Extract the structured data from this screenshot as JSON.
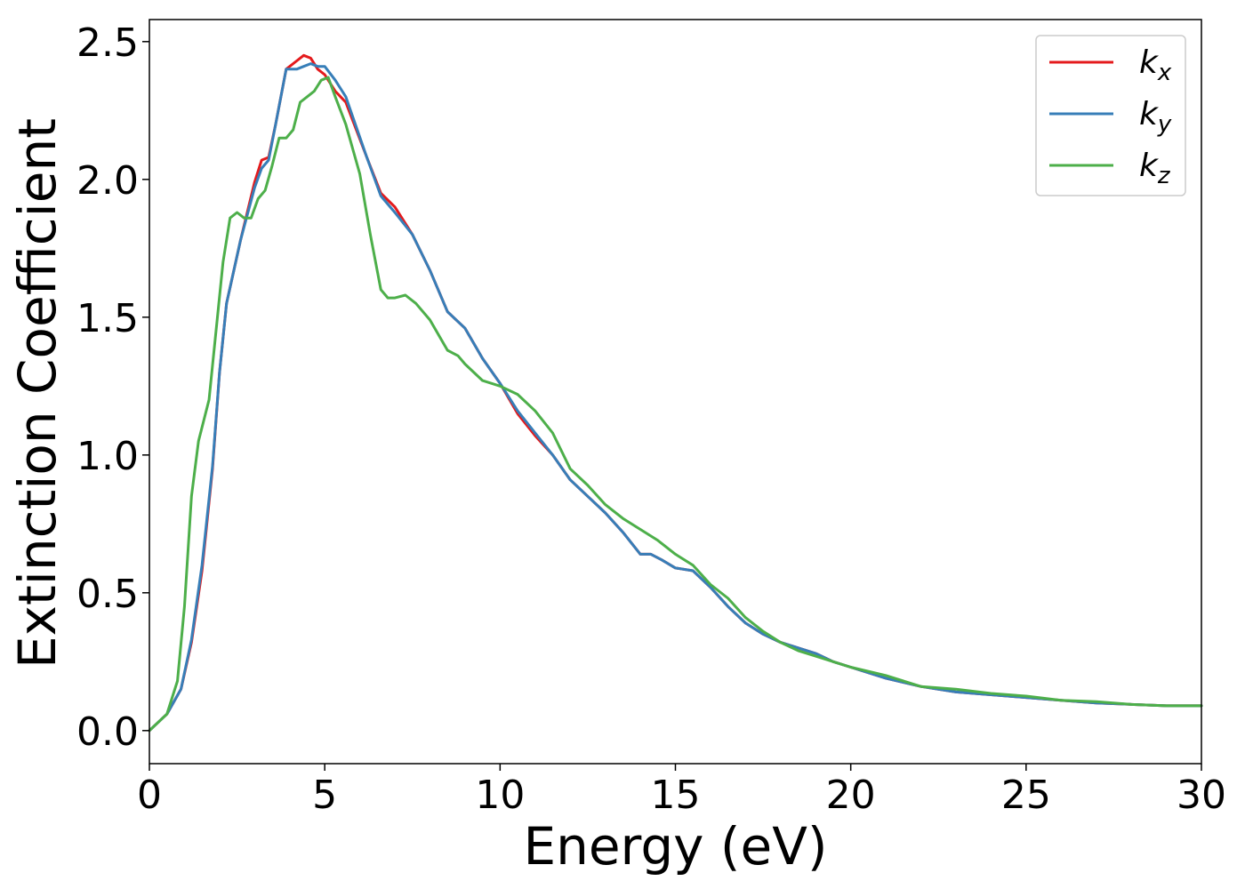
{
  "chart_data": {
    "type": "line",
    "xlabel": "Energy (eV)",
    "ylabel": "Extinction Coefficient",
    "xlim": [
      0,
      30
    ],
    "ylim": [
      -0.12,
      2.58
    ],
    "xticks": [
      0,
      5,
      10,
      15,
      20,
      25,
      30
    ],
    "xtick_labels": [
      "0",
      "5",
      "10",
      "15",
      "20",
      "25",
      "30"
    ],
    "yticks": [
      0.0,
      0.5,
      1.0,
      1.5,
      2.0,
      2.5
    ],
    "ytick_labels": [
      "0.0",
      "0.5",
      "1.0",
      "1.5",
      "2.0",
      "2.5"
    ],
    "grid": false,
    "legend_position": "top-right",
    "series": [
      {
        "name": "k_x",
        "label_main": "k",
        "label_sub": "x",
        "color": "#e41a1c",
        "x": [
          0,
          0.5,
          0.9,
          1.2,
          1.5,
          1.8,
          2.0,
          2.2,
          2.6,
          3.0,
          3.2,
          3.4,
          3.6,
          3.9,
          4.2,
          4.4,
          4.6,
          4.8,
          5.0,
          5.3,
          5.6,
          5.9,
          6.2,
          6.6,
          7.0,
          7.5,
          8.0,
          8.5,
          9.0,
          9.5,
          10.0,
          10.5,
          11.0,
          11.5,
          12.0,
          12.5,
          13.0,
          13.5,
          14.0,
          14.3,
          14.6,
          15.0,
          15.5,
          16.0,
          16.5,
          17.0,
          17.5,
          18.0,
          18.5,
          19.0,
          19.5,
          20.0,
          21.0,
          22.0,
          23.0,
          24.0,
          25.0,
          26.0,
          27.0,
          28.0,
          29.0,
          30.0
        ],
        "y": [
          0.0,
          0.06,
          0.15,
          0.32,
          0.58,
          0.95,
          1.3,
          1.55,
          1.78,
          1.99,
          2.07,
          2.08,
          2.2,
          2.4,
          2.43,
          2.45,
          2.44,
          2.4,
          2.38,
          2.32,
          2.28,
          2.18,
          2.08,
          1.95,
          1.9,
          1.8,
          1.67,
          1.52,
          1.46,
          1.35,
          1.26,
          1.15,
          1.07,
          1.0,
          0.91,
          0.85,
          0.79,
          0.72,
          0.64,
          0.64,
          0.62,
          0.59,
          0.58,
          0.52,
          0.45,
          0.39,
          0.35,
          0.32,
          0.3,
          0.28,
          0.25,
          0.23,
          0.19,
          0.16,
          0.14,
          0.13,
          0.12,
          0.11,
          0.1,
          0.095,
          0.09,
          0.09
        ]
      },
      {
        "name": "k_y",
        "label_main": "k",
        "label_sub": "y",
        "color": "#377eb8",
        "x": [
          0,
          0.5,
          0.9,
          1.2,
          1.5,
          1.8,
          2.0,
          2.2,
          2.6,
          3.0,
          3.2,
          3.4,
          3.6,
          3.9,
          4.2,
          4.4,
          4.6,
          4.8,
          5.0,
          5.3,
          5.6,
          5.9,
          6.2,
          6.6,
          7.0,
          7.5,
          8.0,
          8.5,
          9.0,
          9.5,
          10.0,
          10.5,
          11.0,
          11.5,
          12.0,
          12.5,
          13.0,
          13.5,
          14.0,
          14.3,
          14.6,
          15.0,
          15.5,
          16.0,
          16.5,
          17.0,
          17.5,
          18.0,
          18.5,
          19.0,
          19.5,
          20.0,
          21.0,
          22.0,
          23.0,
          24.0,
          25.0,
          26.0,
          27.0,
          28.0,
          29.0,
          30.0
        ],
        "y": [
          0.0,
          0.06,
          0.15,
          0.33,
          0.6,
          0.96,
          1.3,
          1.55,
          1.78,
          1.97,
          2.04,
          2.07,
          2.2,
          2.4,
          2.4,
          2.41,
          2.42,
          2.41,
          2.41,
          2.36,
          2.3,
          2.19,
          2.08,
          1.94,
          1.88,
          1.8,
          1.67,
          1.52,
          1.46,
          1.35,
          1.26,
          1.16,
          1.08,
          1.0,
          0.91,
          0.85,
          0.79,
          0.72,
          0.64,
          0.64,
          0.62,
          0.59,
          0.58,
          0.52,
          0.45,
          0.39,
          0.35,
          0.32,
          0.3,
          0.28,
          0.25,
          0.23,
          0.19,
          0.16,
          0.14,
          0.13,
          0.12,
          0.11,
          0.1,
          0.095,
          0.09,
          0.09
        ]
      },
      {
        "name": "k_z",
        "label_main": "k",
        "label_sub": "z",
        "color": "#4daf4a",
        "x": [
          0,
          0.5,
          0.8,
          1.0,
          1.2,
          1.4,
          1.7,
          1.9,
          2.1,
          2.3,
          2.5,
          2.7,
          2.9,
          3.1,
          3.3,
          3.5,
          3.7,
          3.9,
          4.1,
          4.3,
          4.5,
          4.7,
          4.9,
          5.1,
          5.3,
          5.6,
          6.0,
          6.3,
          6.6,
          6.8,
          7.0,
          7.3,
          7.6,
          8.0,
          8.5,
          8.8,
          9.0,
          9.5,
          10.0,
          10.5,
          11.0,
          11.5,
          12.0,
          12.5,
          13.0,
          13.5,
          14.0,
          14.5,
          15.0,
          15.5,
          16.0,
          16.5,
          17.0,
          17.5,
          18.0,
          18.5,
          19.0,
          19.5,
          20.0,
          21.0,
          22.0,
          23.0,
          24.0,
          25.0,
          26.0,
          27.0,
          28.0,
          29.0,
          30.0
        ],
        "y": [
          0.0,
          0.06,
          0.18,
          0.45,
          0.85,
          1.05,
          1.2,
          1.45,
          1.7,
          1.86,
          1.88,
          1.86,
          1.86,
          1.93,
          1.96,
          2.05,
          2.15,
          2.15,
          2.18,
          2.28,
          2.3,
          2.32,
          2.36,
          2.37,
          2.3,
          2.2,
          2.02,
          1.8,
          1.6,
          1.57,
          1.57,
          1.58,
          1.55,
          1.49,
          1.38,
          1.36,
          1.33,
          1.27,
          1.25,
          1.22,
          1.16,
          1.08,
          0.95,
          0.89,
          0.82,
          0.77,
          0.73,
          0.69,
          0.64,
          0.6,
          0.53,
          0.48,
          0.41,
          0.36,
          0.32,
          0.29,
          0.27,
          0.25,
          0.23,
          0.2,
          0.16,
          0.15,
          0.135,
          0.125,
          0.11,
          0.105,
          0.095,
          0.09,
          0.09
        ]
      }
    ]
  }
}
